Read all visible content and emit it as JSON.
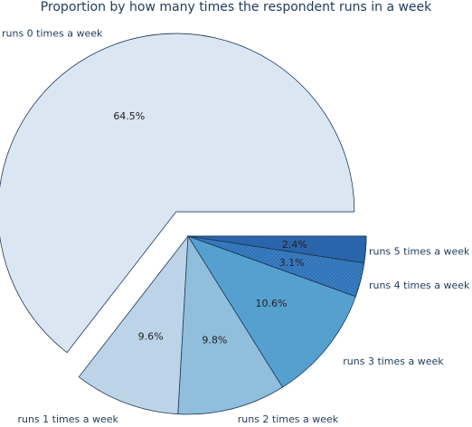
{
  "chart_data": {
    "type": "pie",
    "title": "Proportion by how many times the respondent runs in a week",
    "categories": [
      "runs 0 times a week",
      "runs 1 times a week",
      "runs 2 times a week",
      "runs 3 times a week",
      "runs 4 times a week",
      "runs 5 times a week"
    ],
    "values": [
      64.5,
      9.6,
      9.8,
      10.6,
      3.1,
      2.4
    ],
    "percent_labels": [
      "64.5%",
      "9.6%",
      "9.8%",
      "10.6%",
      "3.1%",
      "2.4%"
    ],
    "colors": [
      "#dbe6f3",
      "#bdd4e8",
      "#8fbfdc",
      "#56a0cf",
      "#3a7ec2",
      "#2c68b0"
    ],
    "hatched": [
      false,
      false,
      false,
      false,
      true,
      true
    ],
    "exploded": [
      true,
      false,
      false,
      false,
      false,
      false
    ],
    "legend": "none"
  }
}
